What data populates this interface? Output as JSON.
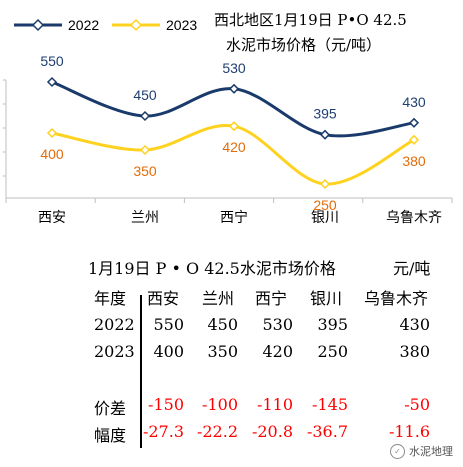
{
  "chart_data": {
    "type": "line",
    "title": "西北地区1月19日 P•O 42.5 水泥市场价格（元/吨）",
    "title_line1": "西北地区1月19日 P•O 42.5",
    "title_line2": "水泥市场价格（元/吨）",
    "categories": [
      "西安",
      "兰州",
      "西宁",
      "银川",
      "乌鲁木齐"
    ],
    "series": [
      {
        "name": "2022",
        "values": [
          550,
          450,
          530,
          395,
          430
        ],
        "color": "#1a3a6b",
        "label_color": "#1f3f73"
      },
      {
        "name": "2023",
        "values": [
          400,
          350,
          420,
          250,
          380
        ],
        "color": "#ffd21f",
        "label_color": "#e36c09"
      }
    ],
    "ylim": [
      150,
      650
    ],
    "legend_position": "top-left",
    "grid": false,
    "smooth": true
  },
  "table": {
    "title": "1月19日 P • O 42.5水泥市场价格",
    "unit": "元/吨",
    "header_label": "年度",
    "columns": [
      "西安",
      "兰州",
      "西宁",
      "银川",
      "乌鲁木齐"
    ],
    "rows": [
      {
        "label": "2022",
        "values": [
          "550",
          "450",
          "530",
          "395",
          "430"
        ],
        "red": false
      },
      {
        "label": "2023",
        "values": [
          "400",
          "350",
          "420",
          "250",
          "380"
        ],
        "red": false
      },
      {
        "label": "价差",
        "values": [
          "-150",
          "-100",
          "-110",
          "-145",
          "-50"
        ],
        "red": true
      },
      {
        "label": "幅度",
        "values": [
          "-27.3",
          "-22.2",
          "-20.8",
          "-36.7",
          "-11.6"
        ],
        "red": true
      }
    ]
  },
  "watermark": {
    "text": "水泥地理",
    "icon": "wechat-logo-icon"
  }
}
